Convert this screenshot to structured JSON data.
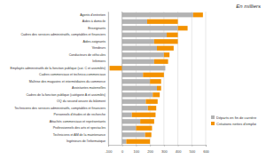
{
  "chart_data": {
    "type": "bar",
    "orientation": "horizontal",
    "stacked": true,
    "grid": true,
    "legend": "bottom-right",
    "annotations": [
      "En milliers"
    ],
    "categories": [
      "Agents d'entretien",
      "Aides à domicile",
      "Enseignants",
      "Cadres des services administratifs, comptables et financiers",
      "Aides-soignants",
      "Vendeurs",
      "Conducteurs de véhicules",
      "Infirmiers",
      "Employés administratifs de la fonction publique (cat. C et assimilés)",
      "Cadres commerciaux et technico-commerciaux",
      "Maîtrise des magasins et intermédiaires du commerce",
      "Assistantes maternelles",
      "Cadres de la fonction publique (catégorie A et assimilés)",
      "OQ du second oeuvre du bâtiment",
      "Techniciens des services administratifs, comptables et financiers",
      "Personnels d'études et de recherche",
      "Attachés commerciaux et représentants",
      "Professionnels des arts et spectacles",
      "Techniciens et AM de la maintenance",
      "Ingénieurs de l'informatique"
    ],
    "series": [
      {
        "name": "Départs en fin de carrière",
        "color": "#b3b3b3",
        "values": [
          510,
          180,
          400,
          320,
          230,
          250,
          300,
          230,
          310,
          150,
          200,
          250,
          220,
          170,
          185,
          70,
          130,
          100,
          165,
          30
        ]
      },
      {
        "name": "Créations nettes d'emploi",
        "color": "#f39200",
        "values": [
          70,
          220,
          70,
          80,
          170,
          120,
          40,
          100,
          -90,
          150,
          80,
          30,
          50,
          85,
          60,
          170,
          100,
          115,
          45,
          170
        ]
      }
    ],
    "xlim": [
      -100,
      600
    ],
    "xticks": [
      -100,
      0,
      100,
      200,
      300,
      400,
      500,
      600
    ]
  }
}
